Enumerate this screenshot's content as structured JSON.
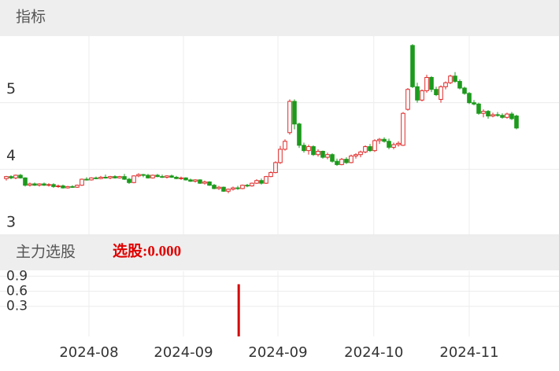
{
  "chart_data": [
    {
      "type": "candlestick",
      "title": "指标",
      "up_color": "#e02a2a",
      "down_color": "#1c9a1c",
      "ylim": [
        3,
        6
      ],
      "yticks": [
        3,
        4,
        5
      ],
      "xlim": [
        -1.33,
        117
      ],
      "ohlc": [
        [
          3.86,
          3.9,
          3.83,
          3.89
        ],
        [
          3.89,
          3.91,
          3.85,
          3.87
        ],
        [
          3.87,
          3.92,
          3.85,
          3.91
        ],
        [
          3.91,
          3.93,
          3.86,
          3.87
        ],
        [
          3.87,
          3.88,
          3.74,
          3.76
        ],
        [
          3.76,
          3.8,
          3.74,
          3.78
        ],
        [
          3.78,
          3.8,
          3.75,
          3.76
        ],
        [
          3.76,
          3.79,
          3.74,
          3.78
        ],
        [
          3.78,
          3.8,
          3.75,
          3.76
        ],
        [
          3.76,
          3.79,
          3.74,
          3.77
        ],
        [
          3.77,
          3.79,
          3.72,
          3.74
        ],
        [
          3.74,
          3.77,
          3.72,
          3.75
        ],
        [
          3.75,
          3.77,
          3.71,
          3.72
        ],
        [
          3.72,
          3.75,
          3.71,
          3.74
        ],
        [
          3.74,
          3.76,
          3.72,
          3.73
        ],
        [
          3.73,
          3.77,
          3.72,
          3.76
        ],
        [
          3.76,
          3.86,
          3.75,
          3.85
        ],
        [
          3.85,
          3.88,
          3.83,
          3.84
        ],
        [
          3.84,
          3.88,
          3.83,
          3.87
        ],
        [
          3.87,
          3.89,
          3.85,
          3.86
        ],
        [
          3.86,
          3.9,
          3.85,
          3.88
        ],
        [
          3.88,
          3.92,
          3.86,
          3.87
        ],
        [
          3.87,
          3.9,
          3.85,
          3.89
        ],
        [
          3.89,
          3.91,
          3.86,
          3.87
        ],
        [
          3.87,
          3.9,
          3.86,
          3.89
        ],
        [
          3.89,
          3.93,
          3.84,
          3.85
        ],
        [
          3.85,
          3.87,
          3.78,
          3.8
        ],
        [
          3.8,
          3.91,
          3.79,
          3.9
        ],
        [
          3.9,
          3.94,
          3.88,
          3.92
        ],
        [
          3.92,
          3.93,
          3.88,
          3.91
        ],
        [
          3.91,
          3.93,
          3.86,
          3.87
        ],
        [
          3.87,
          3.92,
          3.86,
          3.91
        ],
        [
          3.91,
          3.93,
          3.88,
          3.89
        ],
        [
          3.89,
          3.92,
          3.87,
          3.88
        ],
        [
          3.88,
          3.91,
          3.86,
          3.9
        ],
        [
          3.9,
          3.92,
          3.87,
          3.88
        ],
        [
          3.88,
          3.9,
          3.85,
          3.86
        ],
        [
          3.86,
          3.89,
          3.84,
          3.87
        ],
        [
          3.87,
          3.88,
          3.83,
          3.84
        ],
        [
          3.84,
          3.86,
          3.81,
          3.82
        ],
        [
          3.82,
          3.85,
          3.8,
          3.84
        ],
        [
          3.84,
          3.85,
          3.78,
          3.79
        ],
        [
          3.79,
          3.83,
          3.77,
          3.81
        ],
        [
          3.81,
          3.82,
          3.75,
          3.76
        ],
        [
          3.76,
          3.78,
          3.7,
          3.71
        ],
        [
          3.71,
          3.75,
          3.69,
          3.73
        ],
        [
          3.73,
          3.74,
          3.66,
          3.67
        ],
        [
          3.67,
          3.71,
          3.64,
          3.7
        ],
        [
          3.7,
          3.74,
          3.68,
          3.72
        ],
        [
          3.72,
          3.75,
          3.69,
          3.71
        ],
        [
          3.71,
          3.77,
          3.7,
          3.76
        ],
        [
          3.76,
          3.78,
          3.73,
          3.75
        ],
        [
          3.75,
          3.8,
          3.74,
          3.79
        ],
        [
          3.79,
          3.85,
          3.78,
          3.83
        ],
        [
          3.83,
          3.86,
          3.77,
          3.79
        ],
        [
          3.79,
          3.9,
          3.78,
          3.89
        ],
        [
          3.89,
          3.97,
          3.88,
          3.95
        ],
        [
          3.95,
          4.12,
          3.94,
          4.1
        ],
        [
          4.1,
          4.35,
          4.08,
          4.3
        ],
        [
          4.3,
          4.45,
          4.28,
          4.42
        ],
        [
          4.55,
          5.05,
          4.52,
          5.02
        ],
        [
          5.02,
          5.05,
          4.6,
          4.68
        ],
        [
          4.68,
          4.7,
          4.32,
          4.36
        ],
        [
          4.36,
          4.4,
          4.25,
          4.28
        ],
        [
          4.28,
          4.37,
          4.22,
          4.34
        ],
        [
          4.34,
          4.36,
          4.2,
          4.22
        ],
        [
          4.22,
          4.3,
          4.19,
          4.27
        ],
        [
          4.27,
          4.28,
          4.16,
          4.18
        ],
        [
          4.18,
          4.25,
          4.15,
          4.22
        ],
        [
          4.22,
          4.24,
          4.1,
          4.12
        ],
        [
          4.12,
          4.16,
          4.05,
          4.07
        ],
        [
          4.07,
          4.17,
          4.06,
          4.15
        ],
        [
          4.15,
          4.18,
          4.08,
          4.1
        ],
        [
          4.1,
          4.22,
          4.09,
          4.2
        ],
        [
          4.2,
          4.24,
          4.16,
          4.22
        ],
        [
          4.22,
          4.28,
          4.18,
          4.26
        ],
        [
          4.26,
          4.36,
          4.24,
          4.34
        ],
        [
          4.34,
          4.38,
          4.26,
          4.28
        ],
        [
          4.28,
          4.45,
          4.26,
          4.43
        ],
        [
          4.43,
          4.47,
          4.38,
          4.45
        ],
        [
          4.45,
          4.48,
          4.4,
          4.42
        ],
        [
          4.42,
          4.46,
          4.3,
          4.33
        ],
        [
          4.33,
          4.4,
          4.3,
          4.37
        ],
        [
          4.37,
          4.42,
          4.34,
          4.39
        ],
        [
          4.36,
          4.86,
          4.35,
          4.84
        ],
        [
          4.9,
          5.22,
          4.88,
          5.2
        ],
        [
          5.86,
          5.88,
          5.22,
          5.24
        ],
        [
          5.24,
          5.3,
          5.0,
          5.04
        ],
        [
          5.04,
          5.2,
          5.02,
          5.18
        ],
        [
          5.18,
          5.42,
          5.15,
          5.38
        ],
        [
          5.38,
          5.4,
          5.16,
          5.2
        ],
        [
          5.2,
          5.24,
          5.1,
          5.12
        ],
        [
          5.05,
          5.26,
          5.0,
          5.24
        ],
        [
          5.24,
          5.32,
          5.2,
          5.3
        ],
        [
          5.3,
          5.42,
          5.28,
          5.4
        ],
        [
          5.4,
          5.46,
          5.3,
          5.32
        ],
        [
          5.32,
          5.35,
          5.2,
          5.22
        ],
        [
          5.22,
          5.24,
          5.12,
          5.14
        ],
        [
          5.14,
          5.16,
          4.98,
          5.0
        ],
        [
          5.0,
          5.04,
          4.96,
          4.98
        ],
        [
          4.98,
          5.0,
          4.82,
          4.84
        ],
        [
          4.84,
          4.9,
          4.78,
          4.87
        ],
        [
          4.87,
          4.89,
          4.76,
          4.8
        ],
        [
          4.8,
          4.85,
          4.78,
          4.82
        ],
        [
          4.82,
          4.86,
          4.79,
          4.81
        ],
        [
          4.81,
          4.84,
          4.76,
          4.78
        ],
        [
          4.78,
          4.85,
          4.76,
          4.83
        ],
        [
          4.83,
          4.86,
          4.74,
          4.76
        ],
        [
          4.8,
          4.82,
          4.6,
          4.62
        ]
      ]
    },
    {
      "type": "bar",
      "title": "主力选股",
      "annotation": "选股:0.000",
      "color": "#d40000",
      "ylim": [
        -0.3,
        1.0
      ],
      "yticks": [
        0.3,
        0.6,
        0.9
      ],
      "xlim": [
        -1.33,
        117
      ],
      "x": [
        49.2
      ],
      "values": [
        0.74
      ],
      "xticks": [
        {
          "value": 17.5,
          "label": "2024-08"
        },
        {
          "value": 37.5,
          "label": "2024-09"
        },
        {
          "value": 57.5,
          "label": "2024-09"
        },
        {
          "value": 77.8,
          "label": "2024-10"
        },
        {
          "value": 98,
          "label": "2024-11"
        }
      ]
    }
  ]
}
